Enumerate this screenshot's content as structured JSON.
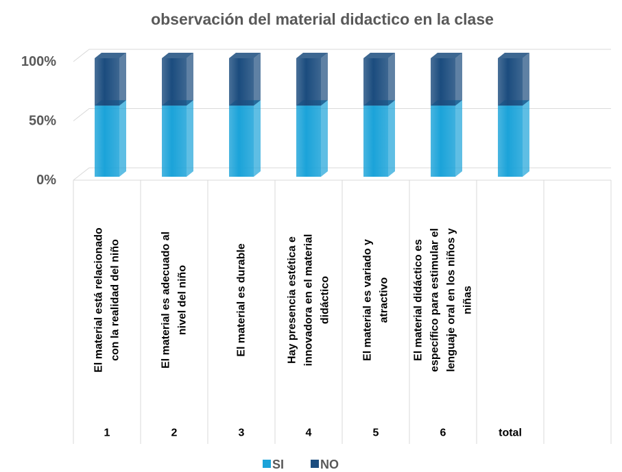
{
  "chart_data": {
    "type": "stacked_bar_3d",
    "title": "observación del material didactico en  la clase",
    "categories": [
      "1",
      "2",
      "3",
      "4",
      "5",
      "6",
      "total",
      null
    ],
    "descriptions": [
      [
        "El material está relacionado",
        "con la realidad del niño"
      ],
      [
        "El material es adecuado al",
        "nivel del niño"
      ],
      [
        "El material es durable"
      ],
      [
        "Hay presencia estética e",
        "innovadora en el material",
        "didáctico"
      ],
      [
        "El material es variado y",
        "atractivo"
      ],
      [
        "El material didáctico es",
        "específico para estimular el",
        "lenguaje oral en los niños y",
        "niñas"
      ],
      null,
      null
    ],
    "series": [
      {
        "name": "SI",
        "color": "#1ba3d9",
        "values": [
          60,
          60,
          60,
          60,
          60,
          60,
          60,
          null
        ]
      },
      {
        "name": "NO",
        "color": "#1b4c7e",
        "values": [
          40,
          40,
          40,
          40,
          40,
          40,
          40,
          null
        ]
      }
    ],
    "ylim": [
      0,
      100
    ],
    "yticks": [
      {
        "value": 0,
        "label": "0%"
      },
      {
        "value": 50,
        "label": "50%"
      },
      {
        "value": 100,
        "label": "100%"
      }
    ],
    "grid": true,
    "legend": "bottom"
  }
}
